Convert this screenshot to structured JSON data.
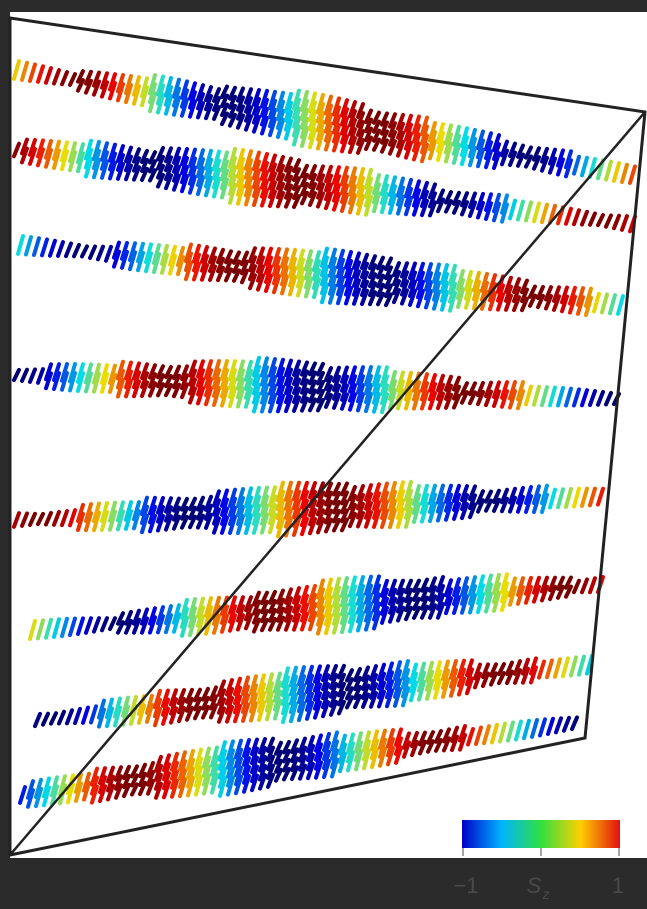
{
  "colorbar": {
    "min_label": "−1",
    "title": "S",
    "title_sub": "z",
    "max_label": "1"
  }
}
